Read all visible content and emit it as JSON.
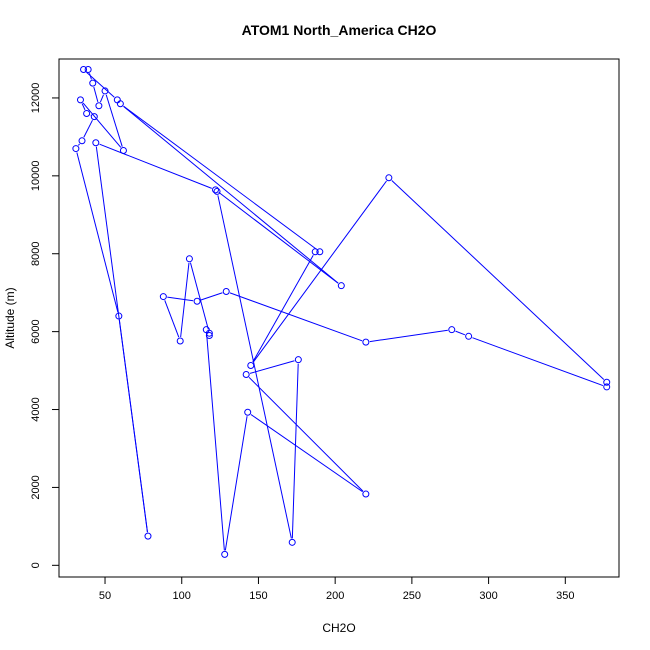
{
  "chart_data": {
    "type": "line",
    "title": "ATOM1 North_America CH2O",
    "xlabel": "CH2O",
    "ylabel": "Altitude (m)",
    "xlim": [
      20,
      385
    ],
    "ylim": [
      -300,
      13000
    ],
    "xticks": [
      50,
      100,
      150,
      200,
      250,
      300,
      350
    ],
    "yticks": [
      0,
      2000,
      4000,
      6000,
      8000,
      10000,
      12000
    ],
    "color": "#0000ff",
    "marker": "open-circle",
    "grid": false,
    "series": [
      {
        "x": [
          58,
          36,
          39,
          42,
          46,
          50,
          62,
          34,
          38,
          43,
          35,
          31,
          59,
          78,
          44,
          122,
          204,
          60,
          190,
          187,
          145,
          235,
          377,
          377,
          287,
          276,
          220,
          129,
          110,
          88,
          99,
          105,
          118,
          118,
          116,
          128,
          143,
          220,
          142,
          176,
          172,
          123
        ],
        "y": [
          11950,
          12730,
          12730,
          12380,
          11800,
          12180,
          10650,
          11950,
          11600,
          11520,
          10900,
          10700,
          6400,
          750,
          10850,
          9640,
          7180,
          11850,
          8050,
          8050,
          5130,
          9950,
          4700,
          4580,
          5880,
          6050,
          5730,
          7030,
          6780,
          6900,
          5760,
          7870,
          5960,
          5900,
          6050,
          280,
          3930,
          1830,
          4900,
          5280,
          590,
          9600
        ]
      }
    ]
  }
}
